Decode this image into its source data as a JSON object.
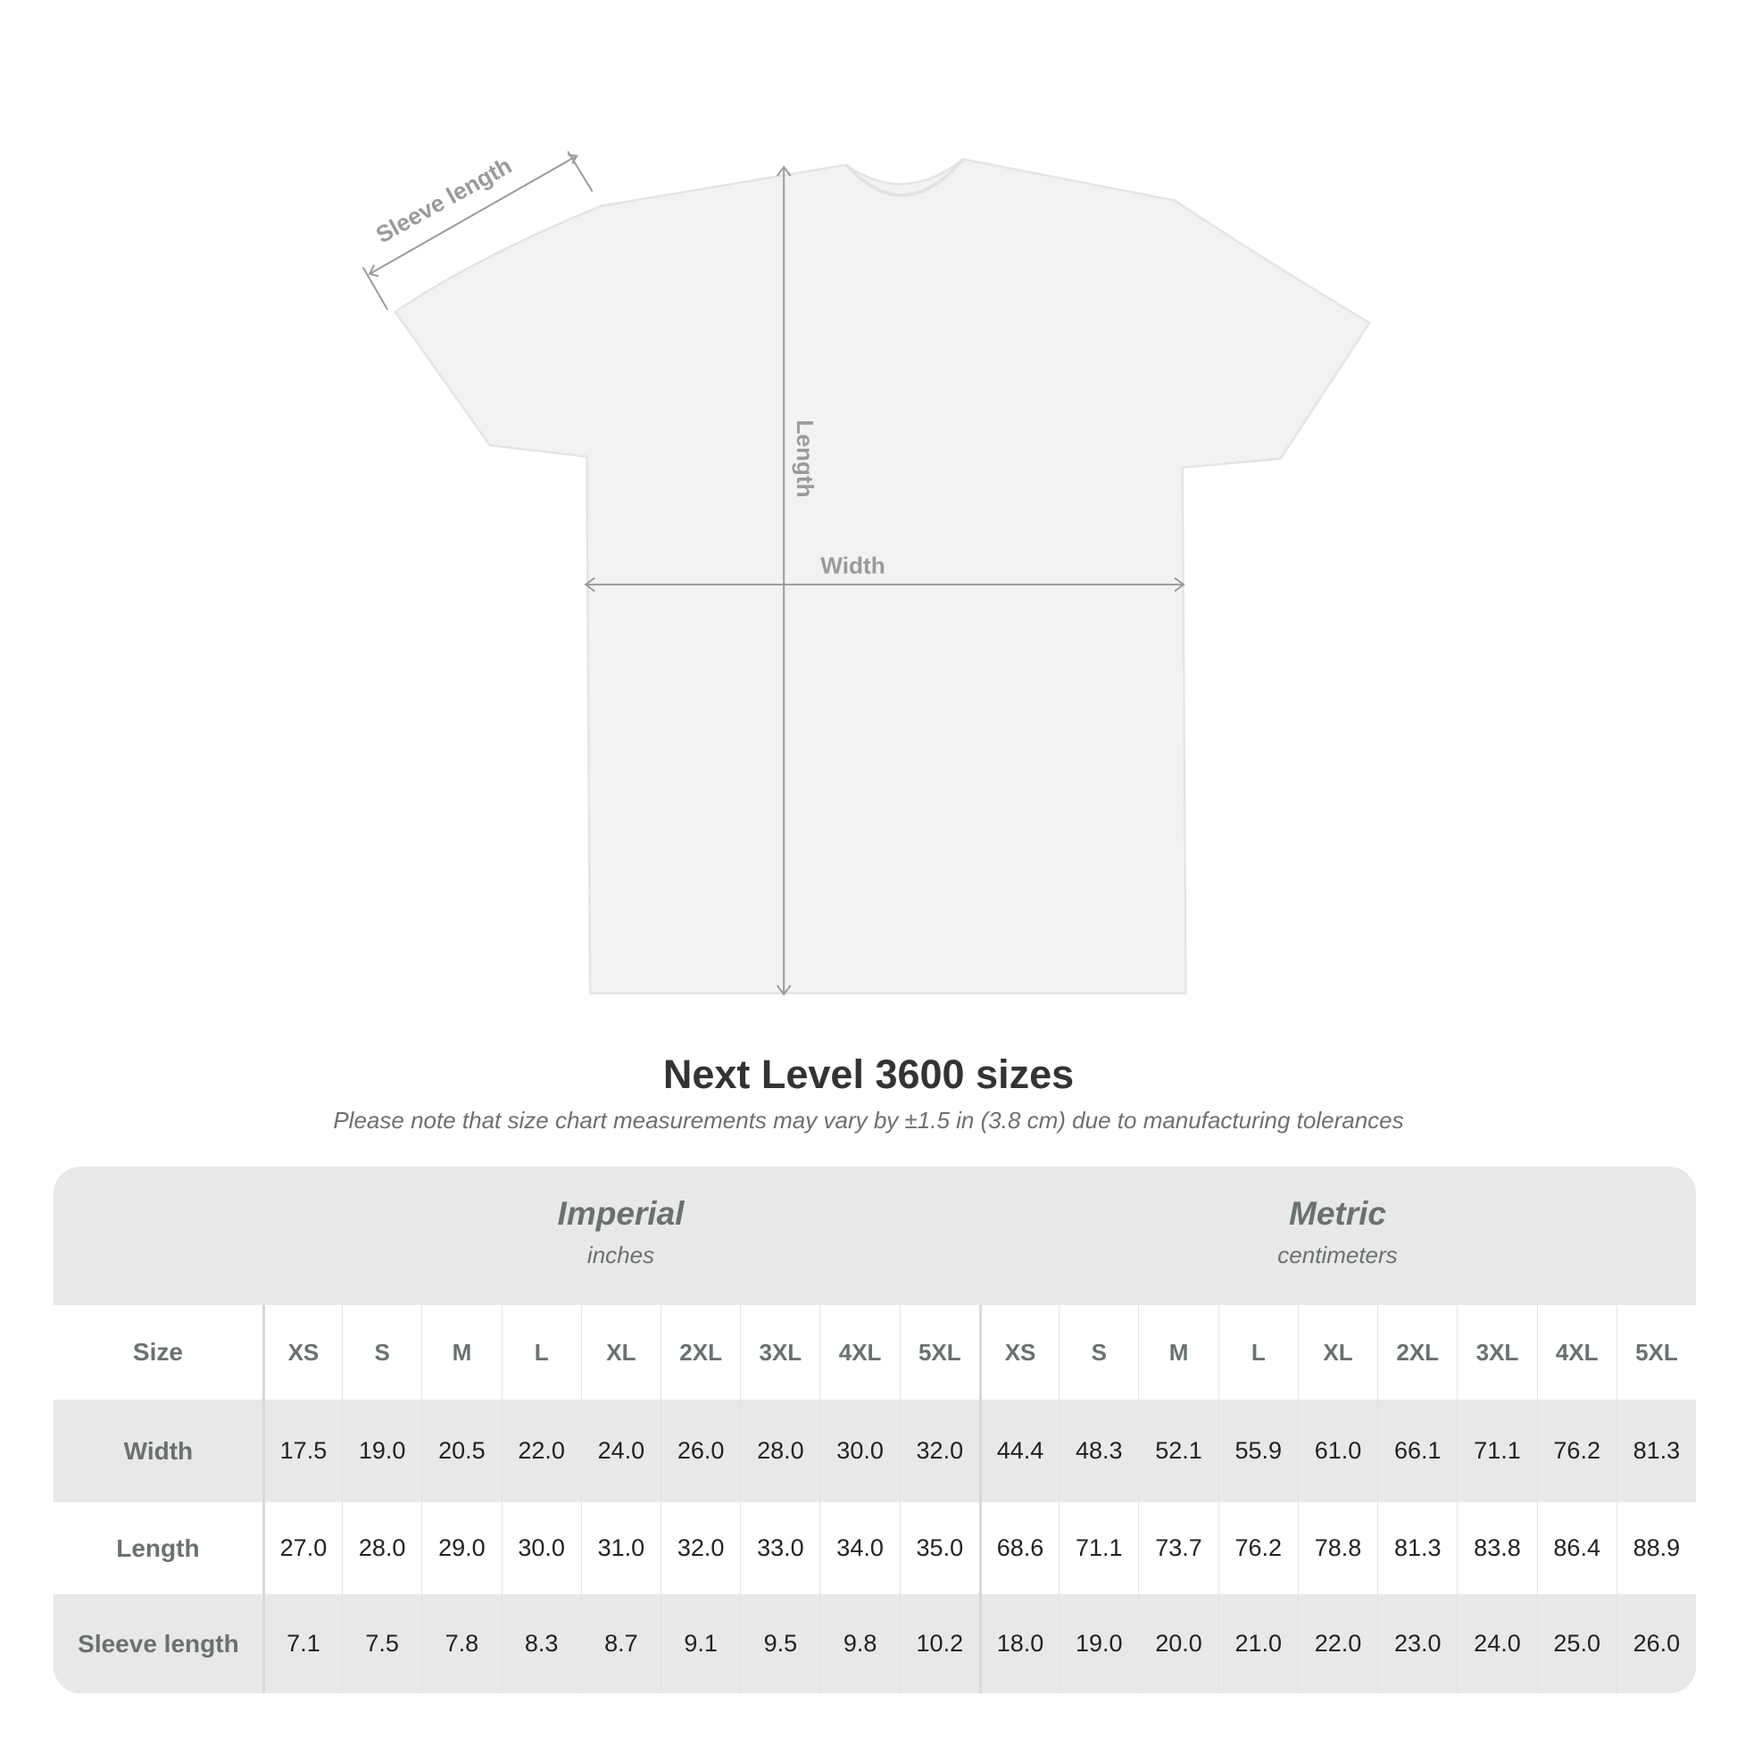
{
  "diagram": {
    "labels": {
      "sleeve": "Sleeve length",
      "length": "Length",
      "width": "Width"
    },
    "colors": {
      "shirt": "#f2f2f2",
      "arrows": "#9a9a9a"
    }
  },
  "title": "Next Level 3600 sizes",
  "note": "Please note that size chart measurements may vary by ±1.5 in (3.8 cm) due to manufacturing tolerances",
  "table": {
    "imperial": {
      "label": "Imperial",
      "unit": "inches"
    },
    "metric": {
      "label": "Metric",
      "unit": "centimeters"
    },
    "size_label": "Size",
    "sizes": [
      "XS",
      "S",
      "M",
      "L",
      "XL",
      "2XL",
      "3XL",
      "4XL",
      "5XL"
    ],
    "rows": [
      {
        "label": "Width",
        "imperial": [
          "17.5",
          "19.0",
          "20.5",
          "22.0",
          "24.0",
          "26.0",
          "28.0",
          "30.0",
          "32.0"
        ],
        "metric": [
          "44.4",
          "48.3",
          "52.1",
          "55.9",
          "61.0",
          "66.1",
          "71.1",
          "76.2",
          "81.3"
        ]
      },
      {
        "label": "Length",
        "imperial": [
          "27.0",
          "28.0",
          "29.0",
          "30.0",
          "31.0",
          "32.0",
          "33.0",
          "34.0",
          "35.0"
        ],
        "metric": [
          "68.6",
          "71.1",
          "73.7",
          "76.2",
          "78.8",
          "81.3",
          "83.8",
          "86.4",
          "88.9"
        ]
      },
      {
        "label": "Sleeve length",
        "imperial": [
          "7.1",
          "7.5",
          "7.8",
          "8.3",
          "8.7",
          "9.1",
          "9.5",
          "9.8",
          "10.2"
        ],
        "metric": [
          "18.0",
          "19.0",
          "20.0",
          "21.0",
          "22.0",
          "23.0",
          "24.0",
          "25.0",
          "26.0"
        ]
      }
    ]
  }
}
